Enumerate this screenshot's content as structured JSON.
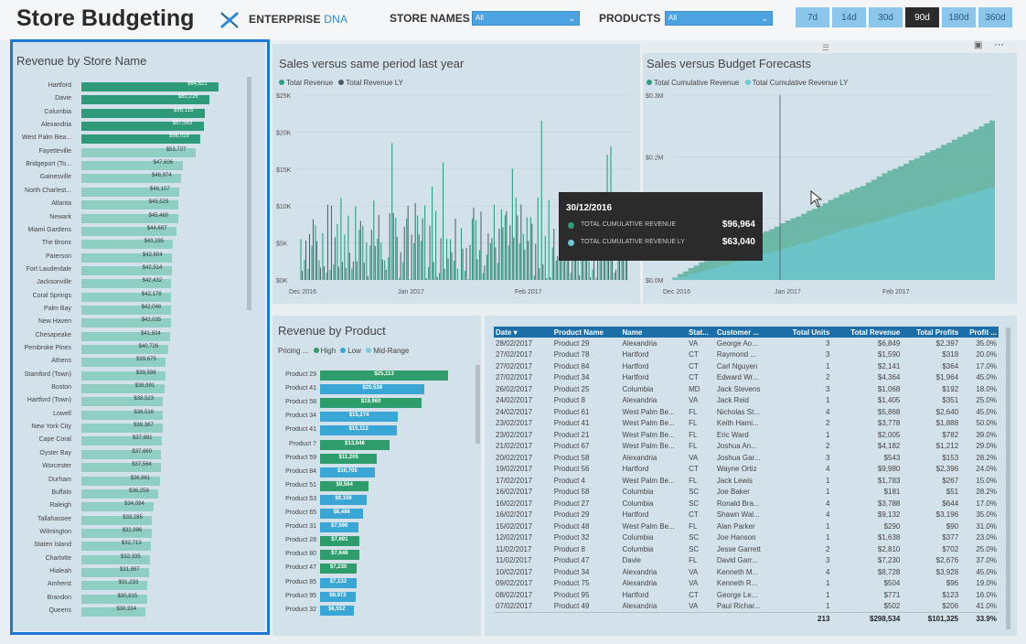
{
  "header": {
    "title": "Store Budgeting",
    "brand_main": "ENTERPRISE",
    "brand_accent": "DNA",
    "filters": [
      {
        "label": "STORE NAMES",
        "value": "All"
      },
      {
        "label": "PRODUCTS",
        "value": "All"
      }
    ],
    "periods": [
      "7d",
      "14d",
      "30d",
      "90d",
      "180d",
      "360d"
    ],
    "active_period": "90d"
  },
  "store_panel": {
    "title": "Revenue by Store Name",
    "stores": [
      {
        "name": "Hartford",
        "value": "$64,621",
        "amount": 64621
      },
      {
        "name": "Davie",
        "value": "$60,216",
        "amount": 60216
      },
      {
        "name": "Columbia",
        "value": "$58,115",
        "amount": 58115
      },
      {
        "name": "Alexandria",
        "value": "$57,563",
        "amount": 57563
      },
      {
        "name": "West Palm Bea...",
        "value": "$56,019",
        "amount": 56019
      },
      {
        "name": "Fayetteville",
        "value": "$53,727",
        "amount": 53727
      },
      {
        "name": "Bridgeport (To...",
        "value": "$47,606",
        "amount": 47606
      },
      {
        "name": "Gainesville",
        "value": "$46,974",
        "amount": 46974
      },
      {
        "name": "North Charlest...",
        "value": "$46,107",
        "amount": 46107
      },
      {
        "name": "Atlanta",
        "value": "$45,529",
        "amount": 45529
      },
      {
        "name": "Newark",
        "value": "$45,460",
        "amount": 45460
      },
      {
        "name": "Miami Gardens",
        "value": "$44,687",
        "amount": 44687
      },
      {
        "name": "The Bronx",
        "value": "$43,285",
        "amount": 43285
      },
      {
        "name": "Paterson",
        "value": "$42,604",
        "amount": 42604
      },
      {
        "name": "Fort Lauderdale",
        "value": "$42,514",
        "amount": 42514
      },
      {
        "name": "Jacksonville",
        "value": "$42,432",
        "amount": 42432
      },
      {
        "name": "Coral Springs",
        "value": "$42,178",
        "amount": 42178
      },
      {
        "name": "Palm Bay",
        "value": "$42,046",
        "amount": 42046
      },
      {
        "name": "New Haven",
        "value": "$42,035",
        "amount": 42035
      },
      {
        "name": "Chesapeake",
        "value": "$41,824",
        "amount": 41824
      },
      {
        "name": "Pembroke Pines",
        "value": "$40,726",
        "amount": 40726
      },
      {
        "name": "Athens",
        "value": "$39,675",
        "amount": 39675
      },
      {
        "name": "Stamford (Town)",
        "value": "$39,598",
        "amount": 39598
      },
      {
        "name": "Boston",
        "value": "$38,991",
        "amount": 38991
      },
      {
        "name": "Hartford (Town)",
        "value": "$38,523",
        "amount": 38523
      },
      {
        "name": "Lowell",
        "value": "$38,516",
        "amount": 38516
      },
      {
        "name": "New York City",
        "value": "$38,387",
        "amount": 38387
      },
      {
        "name": "Cape Coral",
        "value": "$37,891",
        "amount": 37891
      },
      {
        "name": "Oyster Bay",
        "value": "$37,660",
        "amount": 37660
      },
      {
        "name": "Worcester",
        "value": "$37,564",
        "amount": 37564
      },
      {
        "name": "Durham",
        "value": "$36,861",
        "amount": 36861
      },
      {
        "name": "Buffalo",
        "value": "$36,259",
        "amount": 36259
      },
      {
        "name": "Raleigh",
        "value": "$34,094",
        "amount": 34094
      },
      {
        "name": "Tallahassee",
        "value": "$33,285",
        "amount": 33285
      },
      {
        "name": "Wilmington",
        "value": "$32,996",
        "amount": 32996
      },
      {
        "name": "Staten Island",
        "value": "$32,713",
        "amount": 32713
      },
      {
        "name": "Charlotte",
        "value": "$32,335",
        "amount": 32335
      },
      {
        "name": "Hialeah",
        "value": "$31,897",
        "amount": 31897
      },
      {
        "name": "Amherst",
        "value": "$31,233",
        "amount": 31233
      },
      {
        "name": "Brandon",
        "value": "$30,815",
        "amount": 30815
      },
      {
        "name": "Queens",
        "value": "$30,334",
        "amount": 30334
      }
    ]
  },
  "sales_chart": {
    "title": "Sales versus same period last year",
    "legend": [
      "Total Revenue",
      "Total Revenue LY"
    ],
    "colors": {
      "revenue": "#2e9d7e",
      "revenue_ly": "#4a5a66"
    },
    "y_ticks": [
      "$25K",
      "$20K",
      "$15K",
      "$10K",
      "$5K",
      "$0K"
    ],
    "x_ticks": [
      "Dec 2016",
      "Jan 2017",
      "Feb 2017"
    ],
    "ylim": [
      0,
      25000
    ]
  },
  "budget_chart": {
    "title": "Sales versus Budget Forecasts",
    "legend": [
      "Total Cumulative Revenue",
      "Total Cumulative Revenue LY"
    ],
    "colors": {
      "revenue": "#4aa88e",
      "revenue_ly": "#6cc9d9"
    },
    "y_ticks": [
      "$0.3M",
      "$0.2M",
      "$0.1M",
      "$0.0M"
    ],
    "x_ticks": [
      "Dec 2016",
      "Jan 2017",
      "Feb 2017"
    ],
    "ylim": [
      0,
      300000
    ],
    "tooltip": {
      "date": "30/12/2016",
      "rows": [
        {
          "label": "TOTAL CUMULATIVE REVENUE",
          "value": "$96,964",
          "color": "#2e9d7e"
        },
        {
          "label": "TOTAL CUMULATIVE REVENUE LY",
          "value": "$63,040",
          "color": "#6cc9d9"
        }
      ]
    }
  },
  "product_panel": {
    "title": "Revenue by Product",
    "legend_label": "Pricing ...",
    "legend": [
      {
        "name": "High",
        "color": "#2e9d6b"
      },
      {
        "name": "Low",
        "color": "#3aa6d6"
      },
      {
        "name": "Mid-Range",
        "color": "#7fc8e3"
      }
    ],
    "products": [
      {
        "name": "Product 29",
        "value": "$25,113",
        "amount": 25113,
        "tier": "High"
      },
      {
        "name": "Product 41",
        "value": "$20,538",
        "amount": 20538,
        "tier": "Low"
      },
      {
        "name": "Product 58",
        "value": "$19,960",
        "amount": 19960,
        "tier": "High"
      },
      {
        "name": "Product 34",
        "value": "$15,274",
        "amount": 15274,
        "tier": "Low"
      },
      {
        "name": "Product 41",
        "value": "$15,112",
        "amount": 15112,
        "tier": "Low"
      },
      {
        "name": "Product 7",
        "value": "$13,646",
        "amount": 13646,
        "tier": "High"
      },
      {
        "name": "Product 59",
        "value": "$11,205",
        "amount": 11205,
        "tier": "High"
      },
      {
        "name": "Product 84",
        "value": "$10,705",
        "amount": 10705,
        "tier": "Low"
      },
      {
        "name": "Product 51",
        "value": "$9,564",
        "amount": 9564,
        "tier": "High"
      },
      {
        "name": "Product 53",
        "value": "$9,156",
        "amount": 9156,
        "tier": "Low"
      },
      {
        "name": "Product 65",
        "value": "$8,486",
        "amount": 8486,
        "tier": "Low"
      },
      {
        "name": "Product 31",
        "value": "$7,596",
        "amount": 7596,
        "tier": "Low"
      },
      {
        "name": "Product 28",
        "value": "$7,691",
        "amount": 7691,
        "tier": "High"
      },
      {
        "name": "Product 80",
        "value": "$7,648",
        "amount": 7648,
        "tier": "High"
      },
      {
        "name": "Product 47",
        "value": "$7,230",
        "amount": 7230,
        "tier": "High"
      },
      {
        "name": "Product 85",
        "value": "$7,132",
        "amount": 7132,
        "tier": "Low"
      },
      {
        "name": "Product 95",
        "value": "$6,972",
        "amount": 6972,
        "tier": "Low"
      },
      {
        "name": "Product 32",
        "value": "$6,552",
        "amount": 6552,
        "tier": "Low"
      }
    ]
  },
  "table": {
    "columns": [
      "Date",
      "Product Name",
      "Name",
      "Stat...",
      "Customer ...",
      "Total Units",
      "Total Revenue",
      "Total Profits",
      "Profit ..."
    ],
    "rows": [
      [
        "28/02/2017",
        "Product 29",
        "Alexandria",
        "VA",
        "George Ao...",
        "3",
        "$6,849",
        "$2,397",
        "35.0%"
      ],
      [
        "27/02/2017",
        "Product 78",
        "Hartford",
        "CT",
        "Raymond ...",
        "3",
        "$1,590",
        "$318",
        "20.0%"
      ],
      [
        "27/02/2017",
        "Product 84",
        "Hartford",
        "CT",
        "Carl Nguyen",
        "1",
        "$2,141",
        "$364",
        "17.0%"
      ],
      [
        "27/02/2017",
        "Product 34",
        "Hartford",
        "CT",
        "Edward Wr...",
        "2",
        "$4,364",
        "$1,964",
        "45.0%"
      ],
      [
        "26/02/2017",
        "Product 25",
        "Columbia",
        "MD",
        "Jack Stevens",
        "3",
        "$1,068",
        "$192",
        "18.0%"
      ],
      [
        "24/02/2017",
        "Product 8",
        "Alexandria",
        "VA",
        "Jack Reid",
        "1",
        "$1,405",
        "$351",
        "25.0%"
      ],
      [
        "24/02/2017",
        "Product 61",
        "West Palm Be...",
        "FL",
        "Nicholas St...",
        "4",
        "$5,868",
        "$2,640",
        "45.0%"
      ],
      [
        "23/02/2017",
        "Product 41",
        "West Palm Be...",
        "FL",
        "Keith Hami...",
        "2",
        "$3,778",
        "$1,888",
        "50.0%"
      ],
      [
        "23/02/2017",
        "Product 21",
        "West Palm Be...",
        "FL",
        "Eric Ward",
        "1",
        "$2,005",
        "$782",
        "39.0%"
      ],
      [
        "21/02/2017",
        "Product 67",
        "West Palm Be...",
        "FL",
        "Joshua An...",
        "2",
        "$4,182",
        "$1,212",
        "29.0%"
      ],
      [
        "20/02/2017",
        "Product 58",
        "Alexandria",
        "VA",
        "Joshua Gar...",
        "3",
        "$543",
        "$153",
        "28.2%"
      ],
      [
        "19/02/2017",
        "Product 56",
        "Hartford",
        "CT",
        "Wayne Ortiz",
        "4",
        "$9,980",
        "$2,396",
        "24.0%"
      ],
      [
        "17/02/2017",
        "Product 4",
        "West Palm Be...",
        "FL",
        "Jack Lewis",
        "1",
        "$1,783",
        "$267",
        "15.0%"
      ],
      [
        "16/02/2017",
        "Product 58",
        "Columbia",
        "SC",
        "Joe Baker",
        "1",
        "$181",
        "$51",
        "28.2%"
      ],
      [
        "16/02/2017",
        "Product 27",
        "Columbia",
        "SC",
        "Ronald Bra...",
        "4",
        "$3,788",
        "$644",
        "17.0%"
      ],
      [
        "16/02/2017",
        "Product 29",
        "Hartford",
        "CT",
        "Shawn Wal...",
        "4",
        "$9,132",
        "$3,196",
        "35.0%"
      ],
      [
        "15/02/2017",
        "Product 48",
        "West Palm Be...",
        "FL",
        "Alan Parker",
        "1",
        "$290",
        "$90",
        "31.0%"
      ],
      [
        "12/02/2017",
        "Product 32",
        "Columbia",
        "SC",
        "Joe Hanson",
        "1",
        "$1,638",
        "$377",
        "23.0%"
      ],
      [
        "11/02/2017",
        "Product 8",
        "Columbia",
        "SC",
        "Jesse Garrett",
        "2",
        "$2,810",
        "$702",
        "25.0%"
      ],
      [
        "11/02/2017",
        "Product 47",
        "Davie",
        "FL",
        "David Garr...",
        "3",
        "$7,230",
        "$2,676",
        "37.0%"
      ],
      [
        "10/02/2017",
        "Product 34",
        "Alexandria",
        "VA",
        "Kenneth M...",
        "4",
        "$8,728",
        "$3,928",
        "45.0%"
      ],
      [
        "09/02/2017",
        "Product 75",
        "Alexandria",
        "VA",
        "Kenneth R...",
        "1",
        "$504",
        "$96",
        "19.0%"
      ],
      [
        "08/02/2017",
        "Product 95",
        "Hartford",
        "CT",
        "George Le...",
        "1",
        "$771",
        "$123",
        "16.0%"
      ],
      [
        "07/02/2017",
        "Product 49",
        "Alexandria",
        "VA",
        "Paul Richar...",
        "1",
        "$502",
        "$206",
        "41.0%"
      ]
    ],
    "totals": [
      "",
      "",
      "",
      "",
      "",
      "213",
      "$298,534",
      "$101,325",
      "33.9%"
    ]
  }
}
